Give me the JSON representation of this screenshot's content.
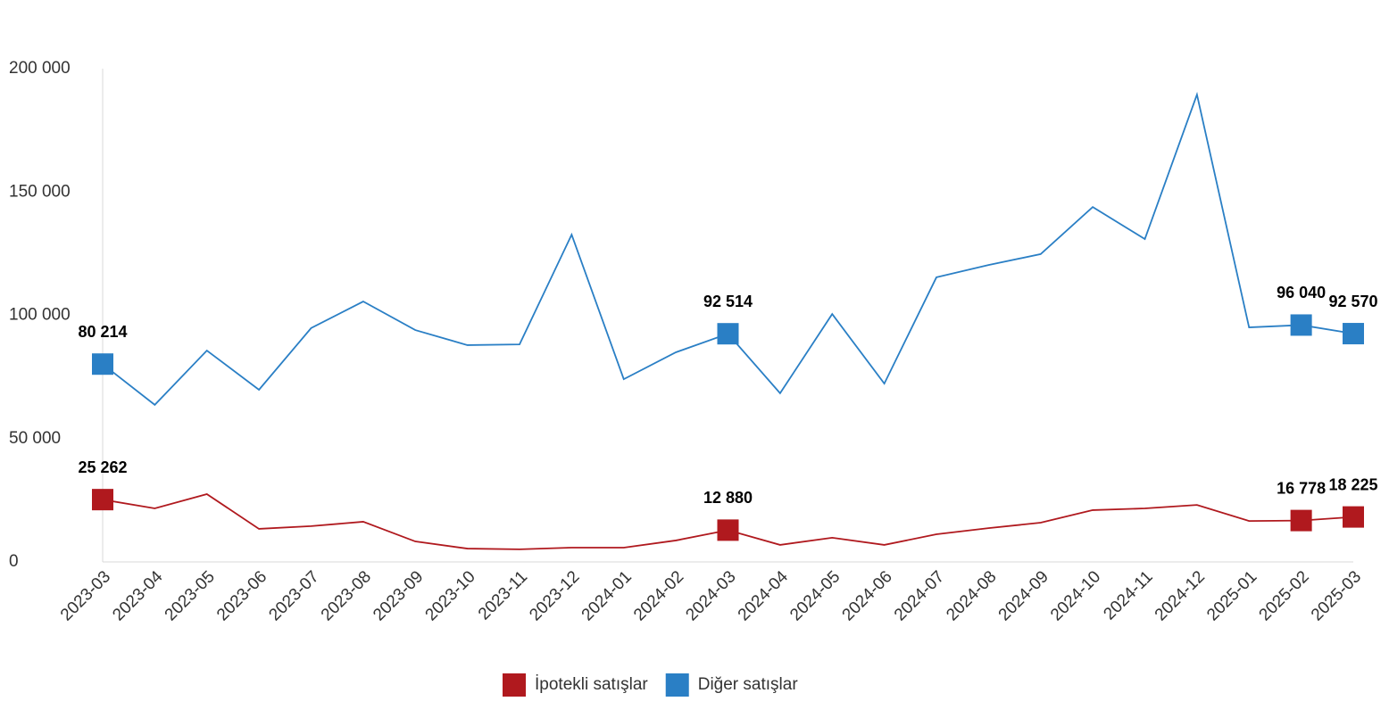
{
  "chart_data": {
    "type": "line",
    "categories": [
      "2023-03",
      "2023-04",
      "2023-05",
      "2023-06",
      "2023-07",
      "2023-08",
      "2023-09",
      "2023-10",
      "2023-11",
      "2023-12",
      "2024-01",
      "2024-02",
      "2024-03",
      "2024-04",
      "2024-05",
      "2024-06",
      "2024-07",
      "2024-08",
      "2024-09",
      "2024-10",
      "2024-11",
      "2024-12",
      "2025-01",
      "2025-02",
      "2025-03"
    ],
    "series": [
      {
        "name": "İpotekli satışlar",
        "color": "#b0191e",
        "values": [
          25262,
          21700,
          27500,
          13400,
          14500,
          16300,
          8300,
          5400,
          5100,
          5800,
          5800,
          8700,
          12880,
          6900,
          9800,
          6900,
          11200,
          13700,
          15900,
          21000,
          21700,
          23100,
          16600,
          16778,
          18225
        ],
        "value_labels": [
          "25 262",
          null,
          null,
          null,
          null,
          null,
          null,
          null,
          null,
          null,
          null,
          null,
          "12 880",
          null,
          null,
          null,
          null,
          null,
          null,
          null,
          null,
          null,
          null,
          "16 778",
          "18 225"
        ]
      },
      {
        "name": "Diğer satışlar",
        "color": "#2a7fc5",
        "values": [
          80214,
          63700,
          85700,
          69800,
          94800,
          105600,
          94000,
          87900,
          88200,
          132700,
          74100,
          85000,
          92514,
          68400,
          100500,
          72300,
          115400,
          120400,
          124800,
          143900,
          130900,
          189500,
          95100,
          96040,
          92570
        ],
        "value_labels": [
          "80 214",
          null,
          null,
          null,
          null,
          null,
          null,
          null,
          null,
          null,
          null,
          null,
          "92 514",
          null,
          null,
          null,
          null,
          null,
          null,
          null,
          null,
          null,
          null,
          "96 040",
          "92 570"
        ]
      }
    ],
    "ylim": [
      0,
      200000
    ],
    "yticks": [
      0,
      {
        "value": 50000,
        "label": "50 000"
      },
      {
        "value": 100000,
        "label": "100 000"
      },
      {
        "value": 150000,
        "label": "150 000"
      },
      {
        "value": 200000,
        "label": "200 000"
      }
    ],
    "grid": false,
    "legend": "bottom"
  }
}
